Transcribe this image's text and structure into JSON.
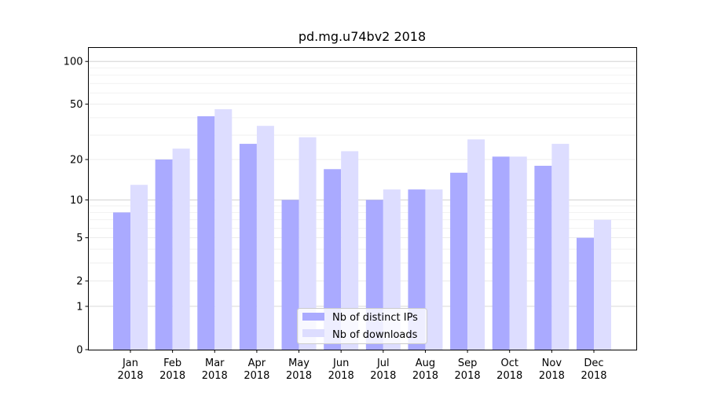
{
  "chart_data": {
    "type": "bar",
    "title": "pd.mg.u74bv2 2018",
    "xlabel": "",
    "ylabel": "",
    "yscale": "symlog",
    "ylim": [
      0,
      120
    ],
    "yticks": [
      0,
      1,
      2,
      5,
      10,
      20,
      50,
      100
    ],
    "ytick_labels": [
      "0",
      "1",
      "2",
      "5",
      "10",
      "20",
      "50",
      "100"
    ],
    "grid": true,
    "legend_position": "bottom-center",
    "categories": [
      "Jan\n2018",
      "Feb\n2018",
      "Mar\n2018",
      "Apr\n2018",
      "May\n2018",
      "Jun\n2018",
      "Jul\n2018",
      "Aug\n2018",
      "Sep\n2018",
      "Oct\n2018",
      "Nov\n2018",
      "Dec\n2018"
    ],
    "category_months": [
      "Jan",
      "Feb",
      "Mar",
      "Apr",
      "May",
      "Jun",
      "Jul",
      "Aug",
      "Sep",
      "Oct",
      "Nov",
      "Dec"
    ],
    "category_years": [
      "2018",
      "2018",
      "2018",
      "2018",
      "2018",
      "2018",
      "2018",
      "2018",
      "2018",
      "2018",
      "2018",
      "2018"
    ],
    "series": [
      {
        "name": "Nb of distinct IPs",
        "color": "#aaaaff",
        "values": [
          8,
          20,
          41,
          26,
          10,
          17,
          10,
          12,
          16,
          21,
          18,
          5
        ]
      },
      {
        "name": "Nb of downloads",
        "color": "#ddddff",
        "values": [
          13,
          24,
          46,
          35,
          29,
          23,
          12,
          12,
          28,
          21,
          26,
          7
        ]
      }
    ]
  }
}
